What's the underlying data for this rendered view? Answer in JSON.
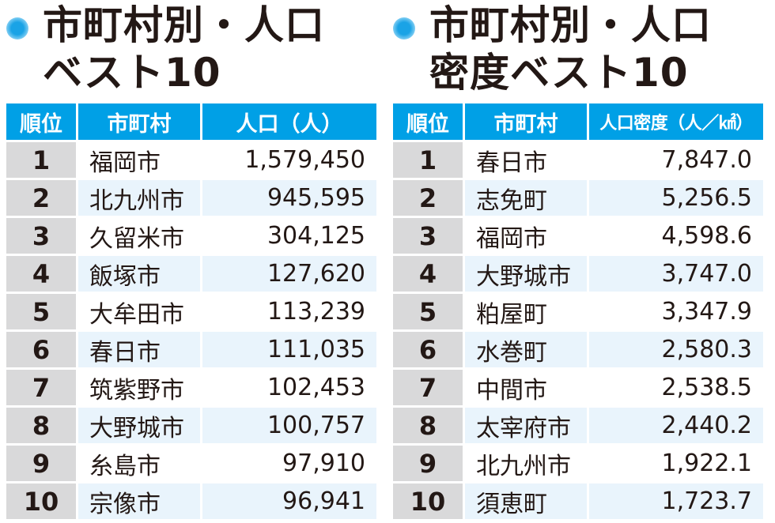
{
  "left": {
    "title_line1": "市町村別・人口",
    "title_line2": "ベスト10",
    "headers": {
      "rank": "順位",
      "name": "市町村",
      "value": "人口（人）"
    },
    "rows": [
      {
        "rank": "1",
        "name": "福岡市",
        "value": "1,579,450"
      },
      {
        "rank": "2",
        "name": "北九州市",
        "value": "945,595"
      },
      {
        "rank": "3",
        "name": "久留米市",
        "value": "304,125"
      },
      {
        "rank": "4",
        "name": "飯塚市",
        "value": "127,620"
      },
      {
        "rank": "5",
        "name": "大牟田市",
        "value": "113,239"
      },
      {
        "rank": "6",
        "name": "春日市",
        "value": "111,035"
      },
      {
        "rank": "7",
        "name": "筑紫野市",
        "value": "102,453"
      },
      {
        "rank": "8",
        "name": "大野城市",
        "value": "100,757"
      },
      {
        "rank": "9",
        "name": "糸島市",
        "value": "97,910"
      },
      {
        "rank": "10",
        "name": "宗像市",
        "value": "96,941"
      }
    ]
  },
  "right": {
    "title_line1": "市町村別・人口",
    "title_line2": "密度ベスト10",
    "headers": {
      "rank": "順位",
      "name": "市町村",
      "value": "人口密度（人／㎢）"
    },
    "rows": [
      {
        "rank": "1",
        "name": "春日市",
        "value": "7,847.0"
      },
      {
        "rank": "2",
        "name": "志免町",
        "value": "5,256.5"
      },
      {
        "rank": "3",
        "name": "福岡市",
        "value": "4,598.6"
      },
      {
        "rank": "4",
        "name": "大野城市",
        "value": "3,747.0"
      },
      {
        "rank": "5",
        "name": "粕屋町",
        "value": "3,347.9"
      },
      {
        "rank": "6",
        "name": "水巻町",
        "value": "2,580.3"
      },
      {
        "rank": "7",
        "name": "中間市",
        "value": "2,538.5"
      },
      {
        "rank": "8",
        "name": "太宰府市",
        "value": "2,440.2"
      },
      {
        "rank": "9",
        "name": "北九州市",
        "value": "1,922.1"
      },
      {
        "rank": "10",
        "name": "須恵町",
        "value": "1,723.7"
      }
    ]
  },
  "colors": {
    "accent": "#00a0e6",
    "rank_bg": "#d9d9da",
    "row_alt": "#e9f4fc"
  },
  "icons": {
    "bullet": "circle-bullet-icon"
  }
}
